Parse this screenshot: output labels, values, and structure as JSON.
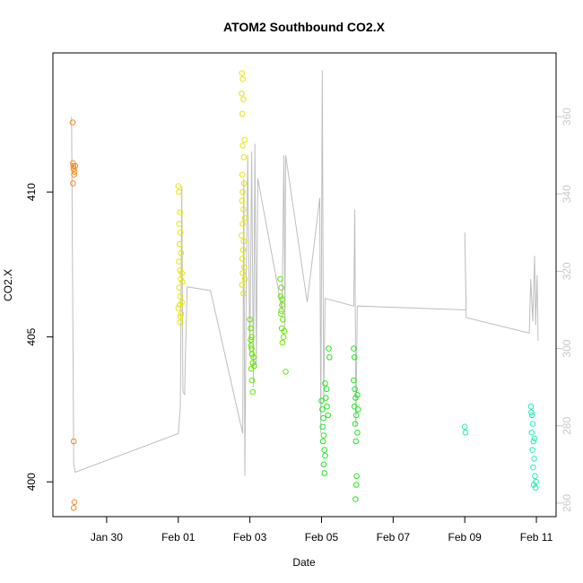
{
  "chart_data": {
    "type": "scatter",
    "title": "ATOM2 Southbound CO2.X",
    "xlabel": "Date",
    "ylabel": "CO2.X",
    "x_ticks": [
      {
        "label": "Jan 30",
        "day": 30
      },
      {
        "label": "Feb 01",
        "day": 32
      },
      {
        "label": "Feb 03",
        "day": 34
      },
      {
        "label": "Feb 05",
        "day": 36
      },
      {
        "label": "Feb 07",
        "day": 38
      },
      {
        "label": "Feb 09",
        "day": 40
      },
      {
        "label": "Feb 11",
        "day": 42
      }
    ],
    "xlim": [
      28.5,
      42.55
    ],
    "ylim": [
      398.8,
      414.8
    ],
    "y_ticks": [
      400,
      405,
      410
    ],
    "y2lim": [
      256.5,
      376.5
    ],
    "y2_ticks": [
      260,
      280,
      300,
      320,
      340,
      360
    ],
    "grid": false,
    "colors": {
      "points_scale": [
        "#FF8000",
        "#FFFF00",
        "#80FF00",
        "#00FF00",
        "#00FFC0"
      ],
      "line": "#bebebe",
      "right_axis": "#c8c8c8"
    },
    "series": [
      {
        "role": "points",
        "axis": "left",
        "clusters": [
          {
            "color": "#F58A1F",
            "points": [
              [
                29.05,
                412.4
              ],
              [
                29.06,
                411.0
              ],
              [
                29.07,
                410.9
              ],
              [
                29.08,
                410.8
              ],
              [
                29.1,
                410.7
              ],
              [
                29.12,
                410.9
              ],
              [
                29.09,
                410.6
              ],
              [
                29.06,
                410.3
              ],
              [
                29.08,
                401.4
              ],
              [
                29.1,
                399.3
              ],
              [
                29.08,
                399.1
              ]
            ]
          },
          {
            "color": "#E6E600",
            "points": [
              [
                32.0,
                410.2
              ],
              [
                32.02,
                410.0
              ],
              [
                32.05,
                409.3
              ],
              [
                32.03,
                408.9
              ],
              [
                32.06,
                408.6
              ],
              [
                32.04,
                408.2
              ],
              [
                32.08,
                407.9
              ],
              [
                32.02,
                407.6
              ],
              [
                32.05,
                407.3
              ],
              [
                32.07,
                407.0
              ],
              [
                32.03,
                406.7
              ],
              [
                32.06,
                406.4
              ],
              [
                32.04,
                406.1
              ],
              [
                32.08,
                405.8
              ],
              [
                32.05,
                405.5
              ],
              [
                32.1,
                407.2
              ],
              [
                32.12,
                406.9
              ],
              [
                32.1,
                406.2
              ],
              [
                32.0,
                406.0
              ],
              [
                32.06,
                405.7
              ],
              [
                33.78,
                414.1
              ],
              [
                33.8,
                413.9
              ],
              [
                33.77,
                413.4
              ],
              [
                33.82,
                413.2
              ],
              [
                33.79,
                412.7
              ],
              [
                33.85,
                411.8
              ],
              [
                33.8,
                411.6
              ],
              [
                33.83,
                411.2
              ],
              [
                33.79,
                410.6
              ],
              [
                33.84,
                410.3
              ],
              [
                33.8,
                410.0
              ],
              [
                33.78,
                409.7
              ],
              [
                33.82,
                409.4
              ],
              [
                33.86,
                409.1
              ],
              [
                33.8,
                408.9
              ],
              [
                33.77,
                408.5
              ],
              [
                33.83,
                408.3
              ],
              [
                33.81,
                408.0
              ],
              [
                33.79,
                407.7
              ],
              [
                33.84,
                407.4
              ],
              [
                33.8,
                407.2
              ],
              [
                33.86,
                407.0
              ],
              [
                33.78,
                406.8
              ],
              [
                33.82,
                406.5
              ]
            ]
          },
          {
            "color": "#66E600",
            "points": [
              [
                34.0,
                405.6
              ],
              [
                34.02,
                405.3
              ],
              [
                34.05,
                405.0
              ],
              [
                34.03,
                404.7
              ],
              [
                34.06,
                404.4
              ],
              [
                34.08,
                404.1
              ],
              [
                34.04,
                403.9
              ],
              [
                34.1,
                404.3
              ],
              [
                34.12,
                404.0
              ],
              [
                34.06,
                403.5
              ],
              [
                34.08,
                403.1
              ],
              [
                34.02,
                404.9
              ],
              [
                34.05,
                404.6
              ],
              [
                34.85,
                407.0
              ],
              [
                34.88,
                406.7
              ],
              [
                34.86,
                406.4
              ],
              [
                34.9,
                406.1
              ],
              [
                34.87,
                405.8
              ],
              [
                34.92,
                405.6
              ],
              [
                34.89,
                405.3
              ],
              [
                34.94,
                405.0
              ],
              [
                34.91,
                404.8
              ],
              [
                34.96,
                405.2
              ],
              [
                34.88,
                405.9
              ],
              [
                34.9,
                406.3
              ],
              [
                35.0,
                403.8
              ]
            ]
          },
          {
            "color": "#22E622",
            "points": [
              [
                36.0,
                402.8
              ],
              [
                36.02,
                402.5
              ],
              [
                36.05,
                402.2
              ],
              [
                36.03,
                401.9
              ],
              [
                36.06,
                401.6
              ],
              [
                36.04,
                401.4
              ],
              [
                36.08,
                401.1
              ],
              [
                36.1,
                400.9
              ],
              [
                36.06,
                400.6
              ],
              [
                36.08,
                400.3
              ],
              [
                36.12,
                402.9
              ],
              [
                36.15,
                402.6
              ],
              [
                36.18,
                402.3
              ],
              [
                36.2,
                404.6
              ],
              [
                36.22,
                404.3
              ],
              [
                36.14,
                403.2
              ],
              [
                36.1,
                403.4
              ],
              [
                36.9,
                404.6
              ],
              [
                36.92,
                404.3
              ],
              [
                36.9,
                403.5
              ],
              [
                36.93,
                403.2
              ],
              [
                36.95,
                402.9
              ],
              [
                36.92,
                402.6
              ],
              [
                36.97,
                402.3
              ],
              [
                36.94,
                402.0
              ],
              [
                37.0,
                401.7
              ],
              [
                36.96,
                401.4
              ],
              [
                36.98,
                400.2
              ],
              [
                36.97,
                399.9
              ],
              [
                36.95,
                399.4
              ],
              [
                37.02,
                402.5
              ],
              [
                37.0,
                403.0
              ]
            ]
          },
          {
            "color": "#22EEB4",
            "points": [
              [
                40.0,
                401.9
              ],
              [
                40.02,
                401.7
              ],
              [
                41.85,
                402.6
              ],
              [
                41.88,
                402.3
              ],
              [
                41.9,
                402.0
              ],
              [
                41.87,
                401.7
              ],
              [
                41.92,
                401.4
              ],
              [
                41.89,
                401.1
              ],
              [
                41.94,
                400.8
              ],
              [
                41.91,
                400.5
              ],
              [
                41.96,
                400.2
              ],
              [
                41.93,
                399.9
              ],
              [
                41.98,
                399.8
              ],
              [
                41.99,
                400.0
              ],
              [
                41.86,
                402.4
              ],
              [
                41.95,
                401.5
              ]
            ]
          }
        ]
      },
      {
        "role": "trace",
        "axis": "right",
        "values": [
          [
            29.02,
            360
          ],
          [
            29.08,
            270
          ],
          [
            29.12,
            268
          ],
          [
            32.0,
            278
          ],
          [
            32.06,
            285
          ],
          [
            32.1,
            342
          ],
          [
            32.13,
            289
          ],
          [
            32.18,
            288
          ],
          [
            32.2,
            298
          ],
          [
            32.25,
            316
          ],
          [
            32.9,
            315
          ],
          [
            33.8,
            278
          ],
          [
            33.83,
            344
          ],
          [
            33.86,
            267
          ],
          [
            33.9,
            318
          ],
          [
            33.94,
            350
          ],
          [
            34.0,
            298
          ],
          [
            34.05,
            351
          ],
          [
            34.1,
            290
          ],
          [
            34.14,
            353
          ],
          [
            34.18,
            295
          ],
          [
            34.22,
            344
          ],
          [
            34.9,
            310
          ],
          [
            34.95,
            350
          ],
          [
            34.98,
            305
          ],
          [
            35.0,
            350
          ],
          [
            35.6,
            312
          ],
          [
            35.95,
            339
          ],
          [
            35.98,
            278
          ],
          [
            36.02,
            372
          ],
          [
            36.06,
            286
          ],
          [
            36.1,
            313
          ],
          [
            36.9,
            311
          ],
          [
            36.93,
            336
          ],
          [
            36.96,
            280
          ],
          [
            37.0,
            311
          ],
          [
            40.0,
            310
          ],
          [
            40.04,
            310
          ],
          [
            40.0,
            330
          ],
          [
            40.04,
            308
          ],
          [
            41.8,
            304
          ],
          [
            41.84,
            318
          ],
          [
            41.9,
            307
          ],
          [
            41.95,
            324
          ],
          [
            41.98,
            306
          ],
          [
            42.02,
            319
          ],
          [
            42.05,
            302
          ]
        ]
      }
    ]
  }
}
